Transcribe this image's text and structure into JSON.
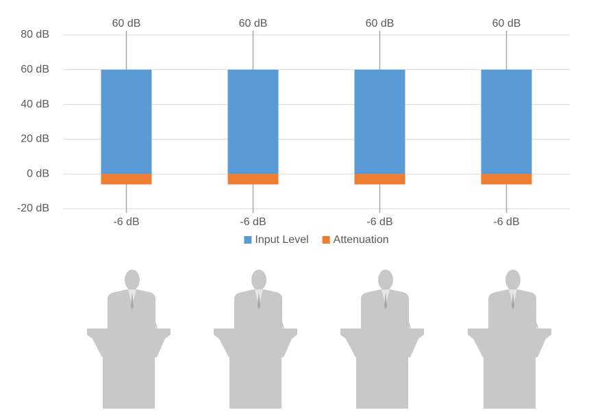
{
  "chart_data": {
    "type": "bar",
    "stacked": true,
    "categories": [
      null,
      null,
      null,
      null
    ],
    "series": [
      {
        "name": "Input Level",
        "color": "#5b9bd5",
        "values": [
          60,
          60,
          60,
          60
        ],
        "value_labels": [
          "60 dB",
          "60 dB",
          "60 dB",
          "60 dB"
        ]
      },
      {
        "name": "Attenuation",
        "color": "#ed7d31",
        "values": [
          -6,
          -6,
          -6,
          -6
        ],
        "value_labels": [
          "-6 dB",
          "-6 dB",
          "-6 dB",
          "-6 dB"
        ]
      }
    ],
    "ylim": [
      -20,
      80
    ],
    "yticks": [
      {
        "value": -20,
        "label": "-20 dB"
      },
      {
        "value": 0,
        "label": "0 dB"
      },
      {
        "value": 20,
        "label": "20 dB"
      },
      {
        "value": 40,
        "label": "40 dB"
      },
      {
        "value": 60,
        "label": "60 dB"
      },
      {
        "value": 80,
        "label": "80 dB"
      }
    ],
    "grid": true,
    "legend": "bottom"
  }
}
